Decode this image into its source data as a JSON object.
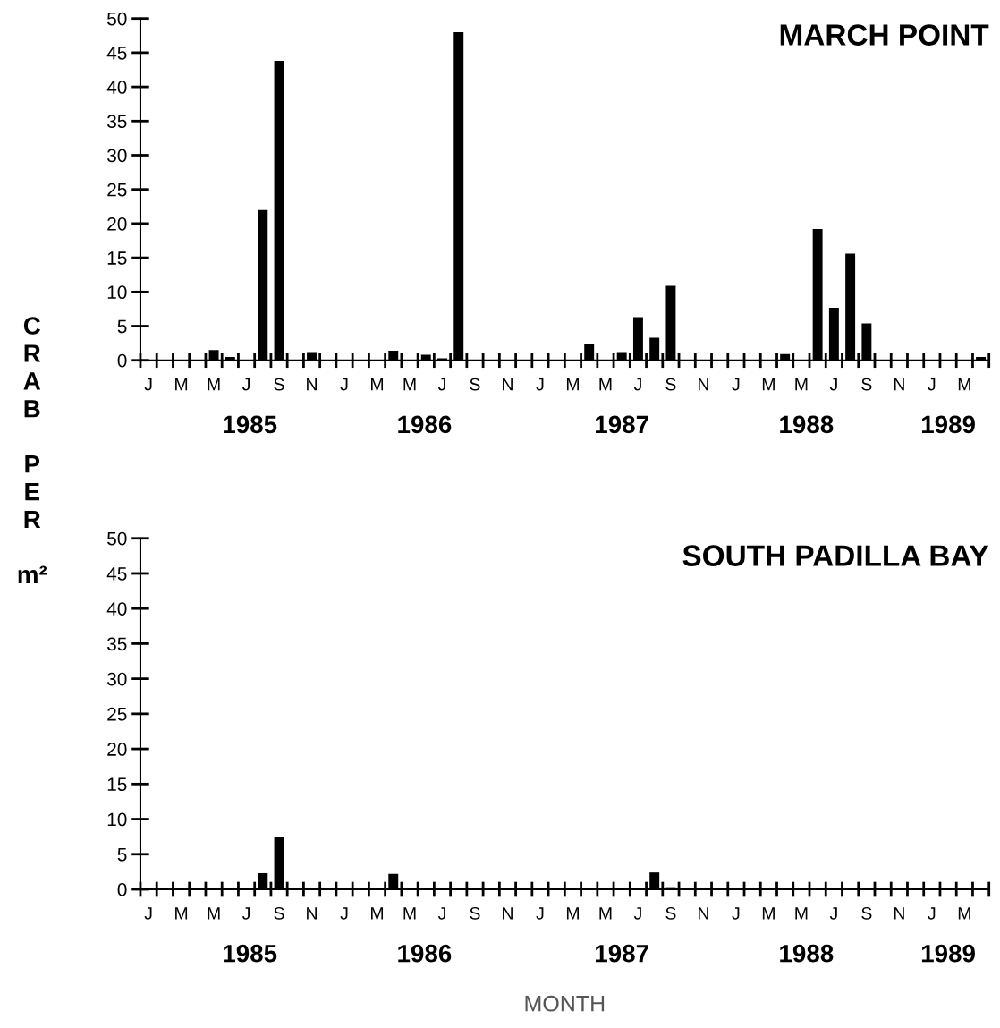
{
  "chart_data": [
    {
      "type": "bar",
      "title": "MARCH POINT",
      "ylabel": "CRAB PER m²",
      "color": "#000000",
      "ylim": [
        0,
        50
      ],
      "yticks": [
        0,
        5,
        10,
        15,
        20,
        25,
        30,
        35,
        40,
        45,
        50
      ],
      "categories": [
        "J",
        null,
        "M",
        null,
        "M",
        null,
        "J",
        null,
        "S",
        null,
        "N",
        null,
        "J",
        null,
        "M",
        null,
        "M",
        null,
        "J",
        null,
        "S",
        null,
        "N",
        null,
        "J",
        null,
        "M",
        null,
        "M",
        null,
        "J",
        null,
        "S",
        null,
        "N",
        null,
        "J",
        null,
        "M",
        null,
        "M",
        null,
        "J",
        null,
        "S",
        null,
        "N",
        null,
        "J",
        null,
        "M",
        null
      ],
      "values": [
        0,
        0,
        0,
        0,
        1.5,
        0.5,
        0,
        22,
        43.8,
        0,
        1.2,
        0,
        0,
        0,
        0,
        1.4,
        0,
        0.8,
        0.3,
        48,
        0,
        0,
        0,
        0,
        0,
        0,
        0,
        2.4,
        0,
        1.2,
        6.3,
        3.3,
        10.9,
        0,
        0,
        0,
        0,
        0,
        0,
        0.9,
        0,
        19.2,
        7.7,
        15.6,
        5.4,
        0,
        0,
        0,
        0,
        0,
        0,
        0.5
      ],
      "annotations": [
        "1985",
        "1986",
        "1987",
        "1988",
        "1989"
      ]
    },
    {
      "type": "bar",
      "title": "SOUTH PADILLA BAY",
      "xlabel": "MONTH",
      "color": "#000000",
      "ylim": [
        0,
        50
      ],
      "yticks": [
        0,
        5,
        10,
        15,
        20,
        25,
        30,
        35,
        40,
        45,
        50
      ],
      "categories": [
        "J",
        null,
        "M",
        null,
        "M",
        null,
        "J",
        null,
        "S",
        null,
        "N",
        null,
        "J",
        null,
        "M",
        null,
        "M",
        null,
        "J",
        null,
        "S",
        null,
        "N",
        null,
        "J",
        null,
        "M",
        null,
        "M",
        null,
        "J",
        null,
        "S",
        null,
        "N",
        null,
        "J",
        null,
        "M",
        null,
        "M",
        null,
        "J",
        null,
        "S",
        null,
        "N",
        null,
        "J",
        null,
        "M",
        null
      ],
      "values": [
        0,
        0,
        0,
        0,
        0,
        0,
        0,
        2.3,
        7.4,
        0,
        0,
        0,
        0,
        0,
        0,
        2.2,
        0,
        0,
        0,
        0,
        0,
        0,
        0,
        0,
        0,
        0,
        0,
        0,
        0,
        0,
        0,
        2.4,
        0.3,
        0,
        0,
        0,
        0,
        0,
        0,
        0,
        0,
        0,
        0,
        0,
        0,
        0,
        0,
        0,
        0,
        0,
        0,
        0
      ],
      "annotations": [
        "1985",
        "1986",
        "1987",
        "1988",
        "1989"
      ]
    }
  ]
}
